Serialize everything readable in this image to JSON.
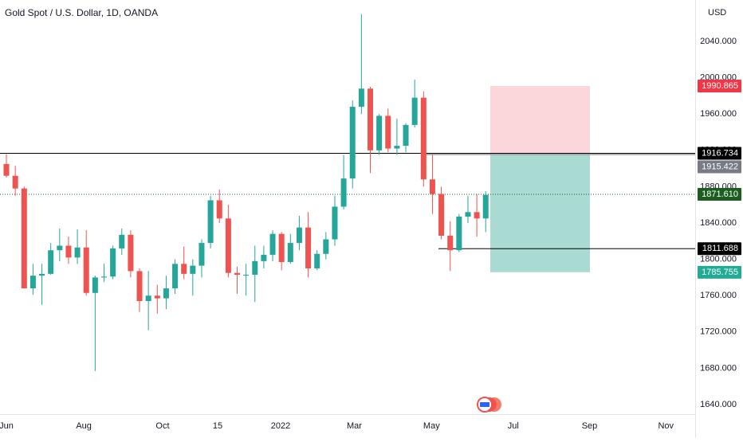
{
  "chart_data": {
    "type": "candlestick",
    "title": "Gold Spot / U.S. Dollar, 1D, OANDA",
    "currency": "USD",
    "up_color": "#26a69a",
    "down_color": "#ef5350",
    "open": [
      1905,
      1892,
      1878,
      1768,
      1782,
      1784,
      1810,
      1815,
      1802,
      1813,
      1763,
      1780,
      1781,
      1812,
      1827,
      1787,
      1754,
      1760,
      1757,
      1768,
      1795,
      1784,
      1793,
      1818,
      1865,
      1845,
      1785,
      1783,
      1783,
      1798,
      1805,
      1828,
      1797,
      1818,
      1835,
      1790,
      1806,
      1822,
      1858,
      1889,
      1968,
      1988,
      1920,
      1958,
      1922,
      1925,
      1948,
      1978,
      1888,
      1872,
      1826,
      1810,
      1847,
      1852,
      1845
    ],
    "high": [
      1916,
      1903,
      1880,
      1795,
      1795,
      1818,
      1834,
      1825,
      1833,
      1832,
      1782,
      1795,
      1815,
      1834,
      1832,
      1790,
      1787,
      1772,
      1782,
      1800,
      1814,
      1800,
      1822,
      1870,
      1877,
      1860,
      1792,
      1795,
      1815,
      1815,
      1832,
      1830,
      1828,
      1848,
      1852,
      1810,
      1830,
      1870,
      1915,
      1975,
      2070,
      1990,
      1960,
      1966,
      1955,
      1950,
      1998,
      1985,
      1915,
      1880,
      1842,
      1850,
      1870,
      1872,
      1875
    ],
    "low": [
      1890,
      1870,
      1768,
      1761,
      1750,
      1783,
      1798,
      1795,
      1795,
      1760,
      1677,
      1775,
      1778,
      1805,
      1780,
      1742,
      1722,
      1740,
      1745,
      1762,
      1778,
      1760,
      1780,
      1812,
      1840,
      1780,
      1762,
      1760,
      1753,
      1790,
      1798,
      1788,
      1795,
      1810,
      1780,
      1788,
      1800,
      1815,
      1855,
      1878,
      1960,
      1895,
      1915,
      1918,
      1915,
      1918,
      1945,
      1880,
      1850,
      1822,
      1787,
      1808,
      1840,
      1825,
      1830
    ],
    "close": [
      1892,
      1878,
      1768,
      1782,
      1784,
      1810,
      1815,
      1802,
      1813,
      1763,
      1780,
      1781,
      1812,
      1827,
      1787,
      1754,
      1760,
      1757,
      1768,
      1795,
      1784,
      1793,
      1818,
      1865,
      1845,
      1785,
      1783,
      1783,
      1798,
      1805,
      1828,
      1797,
      1818,
      1835,
      1790,
      1806,
      1822,
      1858,
      1889,
      1968,
      1988,
      1920,
      1958,
      1922,
      1925,
      1948,
      1978,
      1888,
      1872,
      1826,
      1810,
      1847,
      1852,
      1845,
      1871
    ],
    "xlim": [
      -0.72,
      77.6
    ],
    "xticks": [
      {
        "value": 0,
        "label": "Jun"
      },
      {
        "value": 8.72,
        "label": "Aug"
      },
      {
        "value": 17.6,
        "label": "Oct"
      },
      {
        "value": 23.8,
        "label": "15"
      },
      {
        "value": 30.9,
        "label": "2022"
      },
      {
        "value": 39.2,
        "label": "Mar"
      },
      {
        "value": 47.9,
        "label": "May"
      },
      {
        "value": 57.1,
        "label": "Jul"
      },
      {
        "value": 65.7,
        "label": "Sep"
      },
      {
        "value": 74.3,
        "label": "Nov"
      }
    ],
    "ylim": [
      1629.5,
      2085.6
    ],
    "yticks": [
      {
        "value": 1640,
        "label": "1640.000"
      },
      {
        "value": 1680,
        "label": "1680.000"
      },
      {
        "value": 1720,
        "label": "1720.000"
      },
      {
        "value": 1760,
        "label": "1760.000"
      },
      {
        "value": 1800,
        "label": "1800.000"
      },
      {
        "value": 1840,
        "label": "1840.000"
      },
      {
        "value": 1880,
        "label": "1880.000"
      },
      {
        "value": 1920,
        "label": "1920.000"
      },
      {
        "value": 1960,
        "label": "1960.000"
      },
      {
        "value": 2000,
        "label": "2000.000"
      },
      {
        "value": 2040,
        "label": "2040.000"
      }
    ],
    "price_labels": [
      {
        "value": 1990.865,
        "label": "1990.865",
        "color": "#f23645"
      },
      {
        "value": 1916.734,
        "label": "1916.734",
        "color": "#000000"
      },
      {
        "value": 1915.422,
        "label": "1915.422",
        "color": "#787b86"
      },
      {
        "value": 1871.61,
        "label": "1871.610",
        "color": "#1b5e20"
      },
      {
        "value": 1811.688,
        "label": "1811.688",
        "color": "#000000"
      },
      {
        "value": 1785.755,
        "label": "1785.755",
        "color": "#22ab94"
      }
    ]
  }
}
